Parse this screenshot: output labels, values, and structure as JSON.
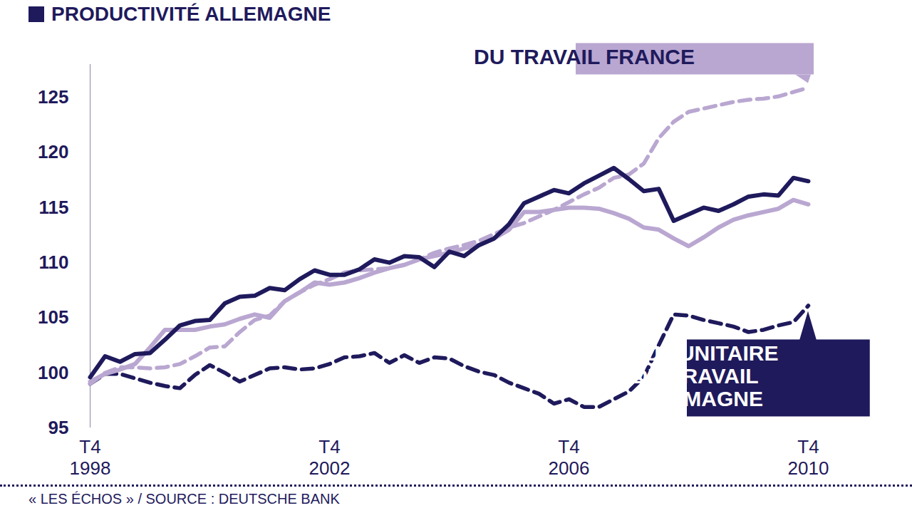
{
  "chart_data": {
    "type": "line",
    "categories": [
      "T4\n1998",
      null,
      null,
      null,
      null,
      null,
      null,
      null,
      null,
      null,
      null,
      null,
      null,
      null,
      null,
      null,
      "T4\n2002",
      null,
      null,
      null,
      null,
      null,
      null,
      null,
      null,
      null,
      null,
      null,
      null,
      null,
      null,
      null,
      "T4\n2006",
      null,
      null,
      null,
      null,
      null,
      null,
      null,
      null,
      null,
      null,
      null,
      null,
      null,
      null,
      null,
      "T4\n2010"
    ],
    "series": [
      {
        "name": "PRODUCTIVITÉ ALLEMAGNE",
        "color": "#1f1a5c",
        "line_style": "solid",
        "values": [
          99.6,
          101.5,
          101.0,
          101.7,
          101.8,
          103.0,
          104.3,
          104.7,
          104.8,
          106.3,
          106.9,
          107.0,
          107.7,
          107.5,
          108.5,
          109.3,
          108.9,
          108.9,
          109.4,
          110.3,
          110.0,
          110.6,
          110.5,
          109.6,
          111.0,
          110.6,
          111.6,
          112.2,
          113.5,
          115.4,
          116.0,
          116.6,
          116.3,
          117.2,
          117.9,
          118.6,
          117.6,
          116.5,
          116.7,
          113.8,
          114.4,
          115.0,
          114.7,
          115.3,
          116.0,
          116.2,
          116.1,
          117.7,
          117.4
        ]
      },
      {
        "color": "#b9a7d1",
        "line_style": "solid",
        "values": [
          99.2,
          99.9,
          100.3,
          100.8,
          102.3,
          103.9,
          103.9,
          103.9,
          104.2,
          104.4,
          104.9,
          105.3,
          105.0,
          106.5,
          107.3,
          108.2,
          108.0,
          108.2,
          108.6,
          109.1,
          109.5,
          109.8,
          110.3,
          110.6,
          110.9,
          111.3,
          111.6,
          112.2,
          113.0,
          114.6,
          114.6,
          114.8,
          115.0,
          115.0,
          114.9,
          114.5,
          114.0,
          113.2,
          113.0,
          112.2,
          111.5,
          112.3,
          113.2,
          113.9,
          114.3,
          114.6,
          114.9,
          115.7,
          115.3
        ]
      },
      {
        "name": "DU TRAVAIL FRANCE",
        "color": "#b9a7d1",
        "line_style": "dashed",
        "values": [
          99.0,
          100.0,
          100.5,
          100.5,
          100.4,
          100.5,
          100.8,
          101.5,
          102.3,
          102.4,
          103.7,
          104.8,
          105.2,
          106.5,
          107.3,
          108.0,
          108.5,
          109.1,
          109.3,
          109.4,
          109.5,
          109.8,
          110.3,
          110.9,
          111.3,
          111.6,
          112.0,
          112.6,
          113.2,
          113.6,
          114.2,
          114.8,
          115.5,
          116.2,
          116.8,
          117.7,
          118.0,
          119.0,
          121.3,
          122.8,
          123.7,
          124.0,
          124.3,
          124.6,
          124.8,
          124.9,
          125.1,
          125.5,
          125.9
        ]
      },
      {
        "name": "COÛT UNITAIRE DU TRAVAIL ALLEMAGNE",
        "color": "#1f1a5c",
        "line_style": "dashed",
        "values": [
          99.0,
          99.9,
          99.9,
          99.5,
          99.1,
          98.8,
          98.6,
          99.8,
          100.7,
          100.0,
          99.2,
          99.8,
          100.4,
          100.5,
          100.3,
          100.4,
          100.8,
          101.4,
          101.5,
          101.8,
          100.9,
          101.6,
          100.9,
          101.4,
          101.3,
          100.6,
          100.1,
          99.8,
          99.1,
          98.6,
          98.1,
          97.2,
          97.6,
          96.9,
          96.9,
          97.6,
          98.3,
          99.6,
          102.5,
          105.3,
          105.2,
          104.8,
          104.5,
          104.2,
          103.7,
          103.9,
          104.3,
          104.6,
          106.1
        ]
      }
    ],
    "ylim": [
      95,
      128
    ],
    "yticks": [
      95,
      100,
      105,
      110,
      115,
      120,
      125
    ],
    "grid": false,
    "legend": "top-left",
    "caption": "« LES ÉCHOS » / SOURCE : DEUTSCHE BANK"
  }
}
